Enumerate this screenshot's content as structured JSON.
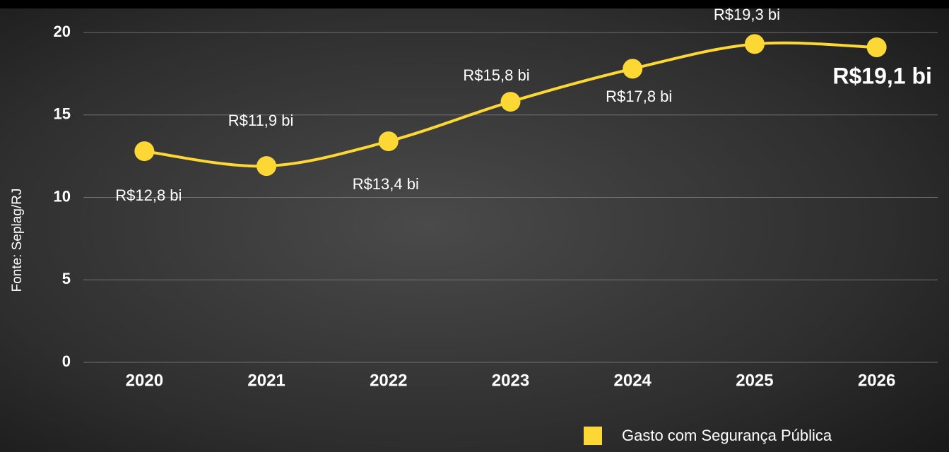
{
  "chart_data": {
    "type": "line",
    "side_note": "Fonte: Seplag/RJ",
    "categories": [
      "2020",
      "2021",
      "2022",
      "2023",
      "2024",
      "2025",
      "2026"
    ],
    "series": [
      {
        "name": "Gasto com Segurança Pública",
        "color": "#fdd835",
        "values": [
          12.8,
          11.9,
          13.4,
          15.8,
          17.8,
          19.3,
          19.1
        ],
        "value_labels": [
          "R$12,8 bi",
          "R$11,9 bi",
          "R$13,4 bi",
          "R$15,8 bi",
          "R$17,8 bi",
          "R$19,3 bi",
          "R$19,1 bi"
        ]
      }
    ],
    "ylim": [
      0,
      20
    ],
    "yticks": [
      0,
      5,
      10,
      15,
      20
    ],
    "grid": true
  }
}
